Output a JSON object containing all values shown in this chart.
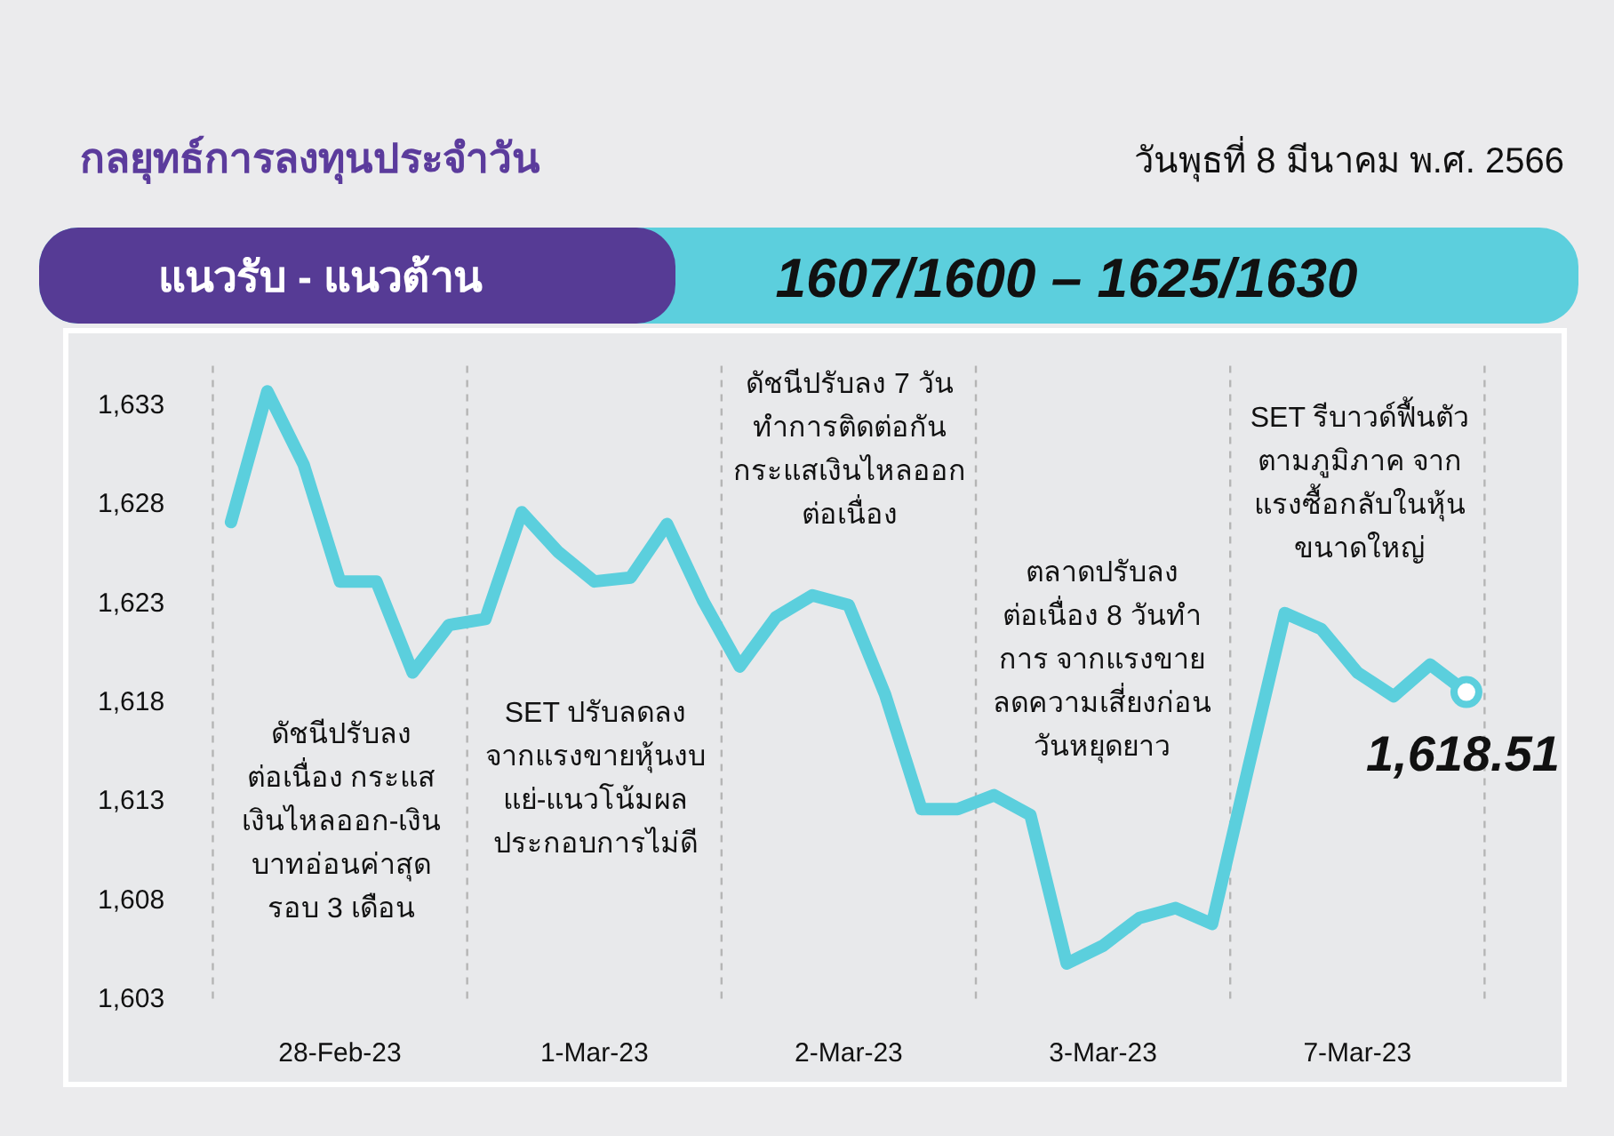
{
  "chart_data": {
    "type": "line",
    "title": "กลยุทธ์การลงทุนประจำวัน",
    "subtitle": "วันพุธที่ 8 มีนาคม พ.ศ. 2566",
    "annotations": [
      "แนวรับ - แนวต้าน",
      "1607/1600 – 1625/1630",
      "ดัชนีปรับลง\nต่อเนื่อง กระแส\nเงินไหลออก-เงิน\nบาทอ่อนค่าสุด\nรอบ 3 เดือน",
      "SET ปรับลดลง\nจากแรงขายหุ้นงบ\nแย่-แนวโน้มผล\nประกอบการไม่ดี",
      "ดัชนีปรับลง 7 วัน\nทำการติดต่อกัน\nกระแสเงินไหลออก\nต่อเนื่อง",
      "ตลาดปรับลง\nต่อเนื่อง 8 วันทำ\nการ จากแรงขาย\nลดความเสี่ยงก่อน\nวันหยุดยาว",
      "SET  รีบาวด์ฟื้นตัว\nตามภูมิภาค จาก\nแรงซื้อกลับในหุ้น\nขนาดใหญ่"
    ],
    "categories": [
      null,
      null,
      null,
      "28-Feb-23",
      null,
      null,
      null,
      null,
      null,
      null,
      "1-Mar-23",
      null,
      null,
      null,
      null,
      null,
      null,
      "2-Mar-23",
      null,
      null,
      null,
      null,
      null,
      null,
      "3-Mar-23",
      null,
      null,
      null,
      null,
      null,
      null,
      "7-Mar-23",
      null,
      null,
      null
    ],
    "ylim": [
      1603,
      1635
    ],
    "yticks": [
      {
        "value": 1603,
        "label": "1,603"
      },
      {
        "value": 1608,
        "label": "1,608"
      },
      {
        "value": 1613,
        "label": "1,613"
      },
      {
        "value": 1618,
        "label": "1,618"
      },
      {
        "value": 1623,
        "label": "1,623"
      },
      {
        "value": 1628,
        "label": "1,628"
      },
      {
        "value": 1633,
        "label": "1,633"
      }
    ],
    "grid": false,
    "marker": "none",
    "line_style": "solid",
    "series": [
      {
        "color": "#5bcfdd",
        "values": [
          1627.1,
          1633.7,
          1630.0,
          1624.1,
          1624.1,
          1619.5,
          1621.9,
          1622.2,
          1627.6,
          1625.6,
          1624.1,
          1624.3,
          1627.0,
          1623.1,
          1619.8,
          1622.3,
          1623.4,
          1622.9,
          1618.4,
          1612.6,
          1612.6,
          1613.3,
          1612.3,
          1604.8,
          1605.7,
          1607.1,
          1607.6,
          1606.8,
          1614.7,
          1622.5,
          1621.7,
          1619.5,
          1618.3,
          1619.9,
          1618.51
        ],
        "value_labels": [
          null,
          null,
          null,
          null,
          null,
          null,
          null,
          null,
          null,
          null,
          null,
          null,
          null,
          null,
          null,
          null,
          null,
          null,
          null,
          null,
          null,
          null,
          null,
          null,
          null,
          null,
          null,
          null,
          null,
          null,
          null,
          null,
          null,
          null,
          "1,618.51"
        ]
      }
    ]
  }
}
